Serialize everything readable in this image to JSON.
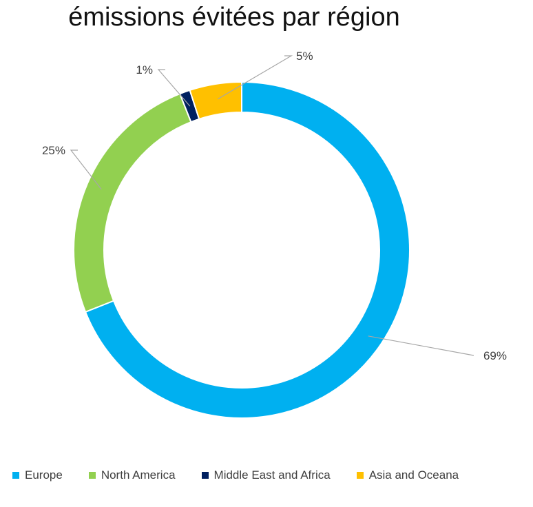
{
  "chart_data": {
    "type": "pie",
    "variant": "donut",
    "title": "émissions évitées par région",
    "categories": [
      "Europe",
      "North America",
      "Middle East and Africa",
      "Asia and Oceana"
    ],
    "values": [
      69,
      25,
      1,
      5
    ],
    "value_labels": [
      "69%",
      "25%",
      "1%",
      "5%"
    ],
    "colors": [
      "#00B0F0",
      "#92D050",
      "#002060",
      "#FFC000"
    ],
    "legend_position": "bottom"
  }
}
